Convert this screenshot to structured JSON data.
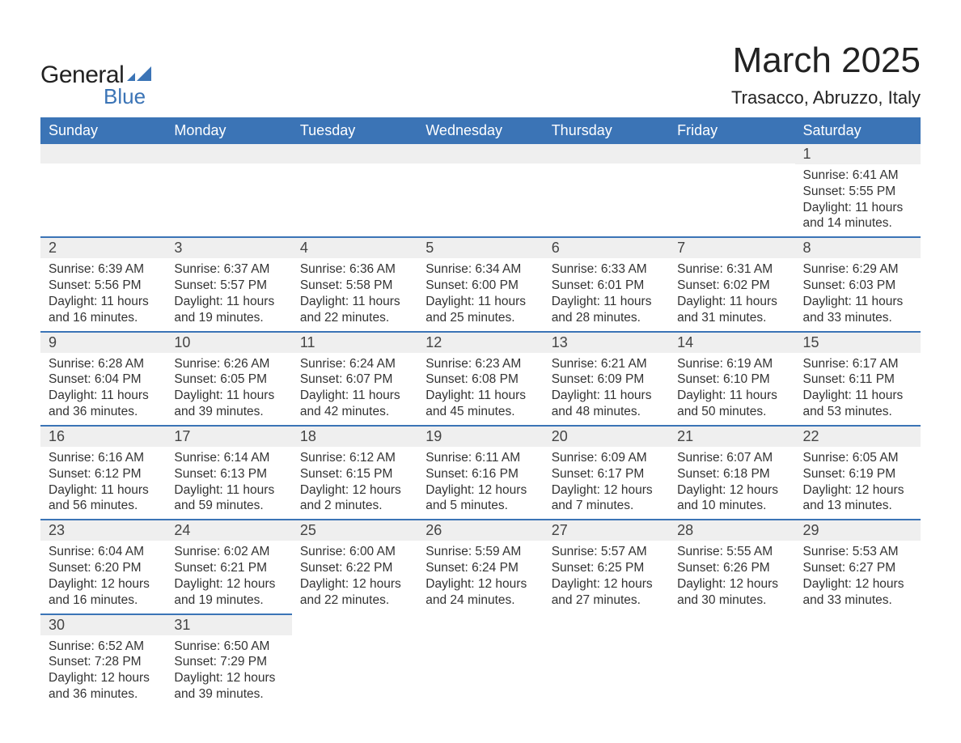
{
  "logo": {
    "text_top": "General",
    "text_bottom": "Blue",
    "text_color": "#222222",
    "accent_color": "#3b74b6"
  },
  "title": "March 2025",
  "location": "Trasacco, Abruzzo, Italy",
  "colors": {
    "header_bg": "#3b74b6",
    "header_text": "#ffffff",
    "daynum_bg": "#efefef",
    "row_divider": "#3b74b6",
    "body_text": "#333333",
    "page_bg": "#ffffff"
  },
  "typography": {
    "title_fontsize": 44,
    "location_fontsize": 22,
    "header_fontsize": 18,
    "daynum_fontsize": 18,
    "content_fontsize": 15.5
  },
  "calendar": {
    "type": "table",
    "columns": [
      "Sunday",
      "Monday",
      "Tuesday",
      "Wednesday",
      "Thursday",
      "Friday",
      "Saturday"
    ],
    "weeks": [
      [
        null,
        null,
        null,
        null,
        null,
        null,
        {
          "day": "1",
          "sunrise": "Sunrise: 6:41 AM",
          "sunset": "Sunset: 5:55 PM",
          "daylight": "Daylight: 11 hours and 14 minutes."
        }
      ],
      [
        {
          "day": "2",
          "sunrise": "Sunrise: 6:39 AM",
          "sunset": "Sunset: 5:56 PM",
          "daylight": "Daylight: 11 hours and 16 minutes."
        },
        {
          "day": "3",
          "sunrise": "Sunrise: 6:37 AM",
          "sunset": "Sunset: 5:57 PM",
          "daylight": "Daylight: 11 hours and 19 minutes."
        },
        {
          "day": "4",
          "sunrise": "Sunrise: 6:36 AM",
          "sunset": "Sunset: 5:58 PM",
          "daylight": "Daylight: 11 hours and 22 minutes."
        },
        {
          "day": "5",
          "sunrise": "Sunrise: 6:34 AM",
          "sunset": "Sunset: 6:00 PM",
          "daylight": "Daylight: 11 hours and 25 minutes."
        },
        {
          "day": "6",
          "sunrise": "Sunrise: 6:33 AM",
          "sunset": "Sunset: 6:01 PM",
          "daylight": "Daylight: 11 hours and 28 minutes."
        },
        {
          "day": "7",
          "sunrise": "Sunrise: 6:31 AM",
          "sunset": "Sunset: 6:02 PM",
          "daylight": "Daylight: 11 hours and 31 minutes."
        },
        {
          "day": "8",
          "sunrise": "Sunrise: 6:29 AM",
          "sunset": "Sunset: 6:03 PM",
          "daylight": "Daylight: 11 hours and 33 minutes."
        }
      ],
      [
        {
          "day": "9",
          "sunrise": "Sunrise: 6:28 AM",
          "sunset": "Sunset: 6:04 PM",
          "daylight": "Daylight: 11 hours and 36 minutes."
        },
        {
          "day": "10",
          "sunrise": "Sunrise: 6:26 AM",
          "sunset": "Sunset: 6:05 PM",
          "daylight": "Daylight: 11 hours and 39 minutes."
        },
        {
          "day": "11",
          "sunrise": "Sunrise: 6:24 AM",
          "sunset": "Sunset: 6:07 PM",
          "daylight": "Daylight: 11 hours and 42 minutes."
        },
        {
          "day": "12",
          "sunrise": "Sunrise: 6:23 AM",
          "sunset": "Sunset: 6:08 PM",
          "daylight": "Daylight: 11 hours and 45 minutes."
        },
        {
          "day": "13",
          "sunrise": "Sunrise: 6:21 AM",
          "sunset": "Sunset: 6:09 PM",
          "daylight": "Daylight: 11 hours and 48 minutes."
        },
        {
          "day": "14",
          "sunrise": "Sunrise: 6:19 AM",
          "sunset": "Sunset: 6:10 PM",
          "daylight": "Daylight: 11 hours and 50 minutes."
        },
        {
          "day": "15",
          "sunrise": "Sunrise: 6:17 AM",
          "sunset": "Sunset: 6:11 PM",
          "daylight": "Daylight: 11 hours and 53 minutes."
        }
      ],
      [
        {
          "day": "16",
          "sunrise": "Sunrise: 6:16 AM",
          "sunset": "Sunset: 6:12 PM",
          "daylight": "Daylight: 11 hours and 56 minutes."
        },
        {
          "day": "17",
          "sunrise": "Sunrise: 6:14 AM",
          "sunset": "Sunset: 6:13 PM",
          "daylight": "Daylight: 11 hours and 59 minutes."
        },
        {
          "day": "18",
          "sunrise": "Sunrise: 6:12 AM",
          "sunset": "Sunset: 6:15 PM",
          "daylight": "Daylight: 12 hours and 2 minutes."
        },
        {
          "day": "19",
          "sunrise": "Sunrise: 6:11 AM",
          "sunset": "Sunset: 6:16 PM",
          "daylight": "Daylight: 12 hours and 5 minutes."
        },
        {
          "day": "20",
          "sunrise": "Sunrise: 6:09 AM",
          "sunset": "Sunset: 6:17 PM",
          "daylight": "Daylight: 12 hours and 7 minutes."
        },
        {
          "day": "21",
          "sunrise": "Sunrise: 6:07 AM",
          "sunset": "Sunset: 6:18 PM",
          "daylight": "Daylight: 12 hours and 10 minutes."
        },
        {
          "day": "22",
          "sunrise": "Sunrise: 6:05 AM",
          "sunset": "Sunset: 6:19 PM",
          "daylight": "Daylight: 12 hours and 13 minutes."
        }
      ],
      [
        {
          "day": "23",
          "sunrise": "Sunrise: 6:04 AM",
          "sunset": "Sunset: 6:20 PM",
          "daylight": "Daylight: 12 hours and 16 minutes."
        },
        {
          "day": "24",
          "sunrise": "Sunrise: 6:02 AM",
          "sunset": "Sunset: 6:21 PM",
          "daylight": "Daylight: 12 hours and 19 minutes."
        },
        {
          "day": "25",
          "sunrise": "Sunrise: 6:00 AM",
          "sunset": "Sunset: 6:22 PM",
          "daylight": "Daylight: 12 hours and 22 minutes."
        },
        {
          "day": "26",
          "sunrise": "Sunrise: 5:59 AM",
          "sunset": "Sunset: 6:24 PM",
          "daylight": "Daylight: 12 hours and 24 minutes."
        },
        {
          "day": "27",
          "sunrise": "Sunrise: 5:57 AM",
          "sunset": "Sunset: 6:25 PM",
          "daylight": "Daylight: 12 hours and 27 minutes."
        },
        {
          "day": "28",
          "sunrise": "Sunrise: 5:55 AM",
          "sunset": "Sunset: 6:26 PM",
          "daylight": "Daylight: 12 hours and 30 minutes."
        },
        {
          "day": "29",
          "sunrise": "Sunrise: 5:53 AM",
          "sunset": "Sunset: 6:27 PM",
          "daylight": "Daylight: 12 hours and 33 minutes."
        }
      ],
      [
        {
          "day": "30",
          "sunrise": "Sunrise: 6:52 AM",
          "sunset": "Sunset: 7:28 PM",
          "daylight": "Daylight: 12 hours and 36 minutes."
        },
        {
          "day": "31",
          "sunrise": "Sunrise: 6:50 AM",
          "sunset": "Sunset: 7:29 PM",
          "daylight": "Daylight: 12 hours and 39 minutes."
        },
        null,
        null,
        null,
        null,
        null
      ]
    ]
  }
}
